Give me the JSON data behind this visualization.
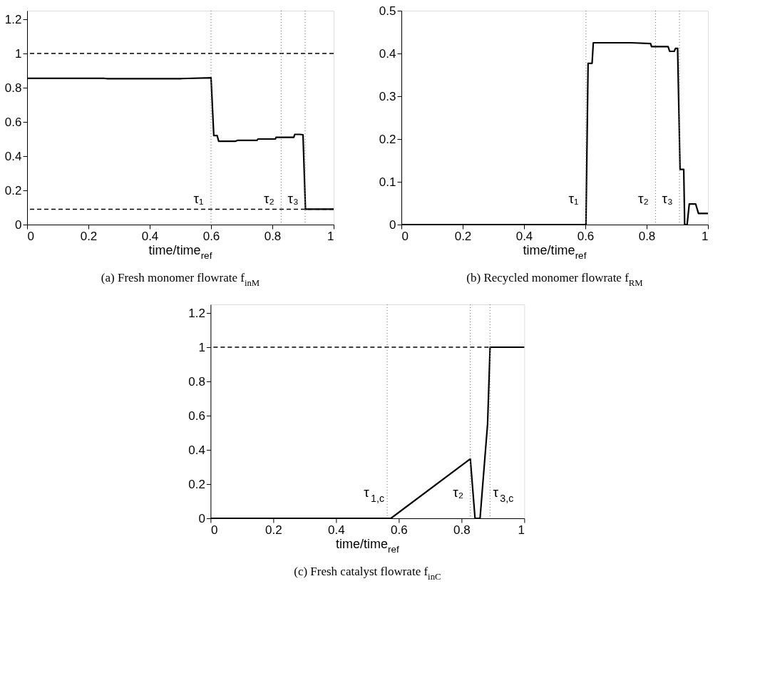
{
  "chart_data": [
    {
      "type": "line",
      "title": "(a) Fresh monomer flowrate f$_{inM}$",
      "xlabel": "time/time$_{ref}$",
      "xlim": [
        0,
        1
      ],
      "xticks": [
        0,
        0.2,
        0.4,
        0.6,
        0.8,
        1
      ],
      "ylim": [
        0,
        1.25
      ],
      "yticks": [
        0,
        0.2,
        0.4,
        0.6,
        0.8,
        1,
        1.2
      ],
      "grid": false,
      "series": [
        {
          "color": "#000000",
          "x": [
            0,
            0.25,
            0.26,
            0.5,
            0.6,
            0.609,
            0.62,
            0.625,
            0.68,
            0.686,
            0.75,
            0.753,
            0.81,
            0.812,
            0.87,
            0.873,
            0.89,
            0.9,
            0.908,
            1
          ],
          "values": [
            0.855,
            0.855,
            0.853,
            0.853,
            0.858,
            0.52,
            0.52,
            0.487,
            0.487,
            0.492,
            0.492,
            0.5,
            0.5,
            0.51,
            0.51,
            0.527,
            0.527,
            0.525,
            0.09,
            0.09
          ]
        }
      ],
      "ref_lines": [
        {
          "axis": "y",
          "value": 1,
          "color": "#000000",
          "line_style": "dashed"
        },
        {
          "axis": "y",
          "value": 0.09,
          "color": "#000000",
          "line_style": "dashed"
        },
        {
          "axis": "x",
          "value": 0.6,
          "label": "τ₁",
          "color": "#808080",
          "line_style": "dotted"
        },
        {
          "axis": "x",
          "value": 0.829,
          "label": "τ₂",
          "color": "#808080",
          "line_style": "dotted"
        },
        {
          "axis": "x",
          "value": 0.907,
          "label": "τ₃",
          "color": "#808080",
          "line_style": "dotted"
        }
      ]
    },
    {
      "type": "line",
      "title": "(b) Recycled monomer flowrate f$_{RM}$",
      "xlabel": "time/time$_{ref}$",
      "xlim": [
        0,
        1
      ],
      "xticks": [
        0,
        0.2,
        0.4,
        0.6,
        0.8,
        1
      ],
      "ylim": [
        0,
        0.5
      ],
      "yticks": [
        0,
        0.1,
        0.2,
        0.3,
        0.4,
        0.5
      ],
      "grid": false,
      "series": [
        {
          "color": "#000000",
          "x": [
            0,
            0.602,
            0.609,
            0.622,
            0.626,
            0.75,
            0.813,
            0.816,
            0.87,
            0.875,
            0.89,
            0.894,
            0.901,
            0.909,
            0.921,
            0.924,
            0.932,
            0.939,
            0.96,
            0.969,
            1
          ],
          "values": [
            0,
            0,
            0.377,
            0.377,
            0.425,
            0.425,
            0.423,
            0.416,
            0.416,
            0.405,
            0.405,
            0.412,
            0.412,
            0.129,
            0.129,
            0,
            0,
            0.048,
            0.048,
            0.026,
            0.026
          ]
        }
      ],
      "ref_lines": [
        {
          "axis": "x",
          "value": 0.602,
          "label": "τ₁",
          "color": "#808080",
          "line_style": "dotted"
        },
        {
          "axis": "x",
          "value": 0.829,
          "label": "τ₂",
          "color": "#808080",
          "line_style": "dotted"
        },
        {
          "axis": "x",
          "value": 0.907,
          "label": "τ₃",
          "color": "#808080",
          "line_style": "dotted"
        }
      ]
    },
    {
      "type": "line",
      "title": "(c) Fresh catalyst flowrate f$_{inC}$",
      "xlabel": "time/time$_{ref}$",
      "xlim": [
        0,
        1
      ],
      "xticks": [
        0,
        0.2,
        0.4,
        0.6,
        0.8,
        1
      ],
      "ylim": [
        0,
        1.25
      ],
      "yticks": [
        0,
        0.2,
        0.4,
        0.6,
        0.8,
        1,
        1.2
      ],
      "grid": false,
      "series": [
        {
          "color": "#000000",
          "x": [
            0,
            0.575,
            0.828,
            0.843,
            0.859,
            0.883,
            0.891,
            1
          ],
          "values": [
            0,
            0,
            0.347,
            0,
            0,
            0.551,
            1,
            1
          ]
        }
      ],
      "ref_lines": [
        {
          "axis": "y",
          "value": 1,
          "color": "#000000",
          "line_style": "dashed"
        },
        {
          "axis": "x",
          "value": 0.563,
          "label": "τ$_{1,c}$",
          "color": "#808080",
          "line_style": "dotted"
        },
        {
          "axis": "x",
          "value": 0.828,
          "label": "τ₂",
          "color": "#808080",
          "line_style": "dotted"
        },
        {
          "axis": "x",
          "value": 0.891,
          "label": "τ$_{3,c}$",
          "color": "#808080",
          "line_style": "dotted"
        }
      ]
    }
  ]
}
